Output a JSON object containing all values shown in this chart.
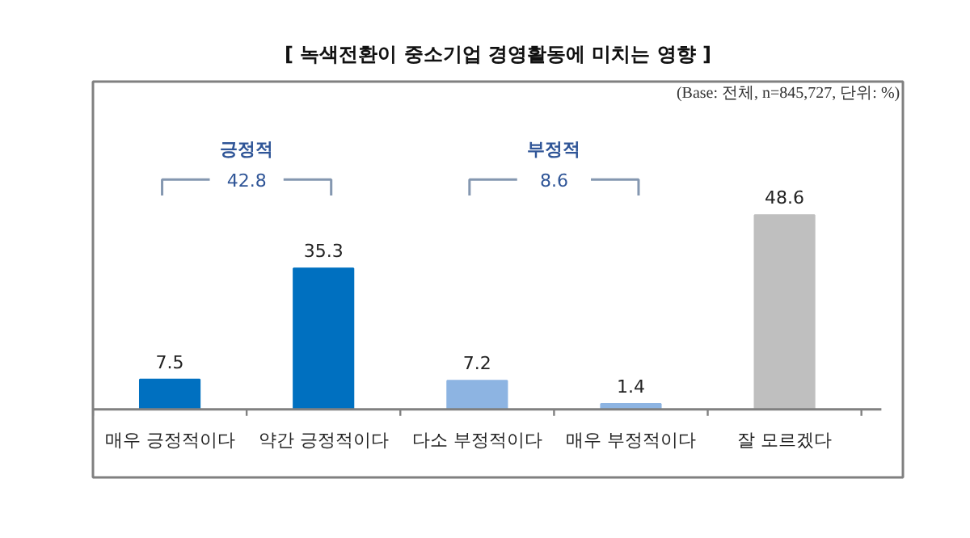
{
  "chart_data": {
    "type": "bar",
    "title": "[ 녹색전환이 중소기업 경영활동에 미치는 영향 ]",
    "categories": [
      "매우 긍정적이다",
      "약간 긍정적이다",
      "다소 부정적이다",
      "매우 부정적이다",
      "잘 모르겠다"
    ],
    "values": [
      7.5,
      35.3,
      7.2,
      1.4,
      48.6
    ],
    "colors": [
      "#0070c0",
      "#0070c0",
      "#8db4e2",
      "#8db4e2",
      "#bfbfbf"
    ],
    "ylim": [
      -17,
      82
    ],
    "data_labels": true,
    "grid": false,
    "annotations": [
      "(Base: 전체, n=845,727, 단위: %)",
      "긍정적",
      "42.8",
      "부정적",
      "8.6"
    ]
  }
}
